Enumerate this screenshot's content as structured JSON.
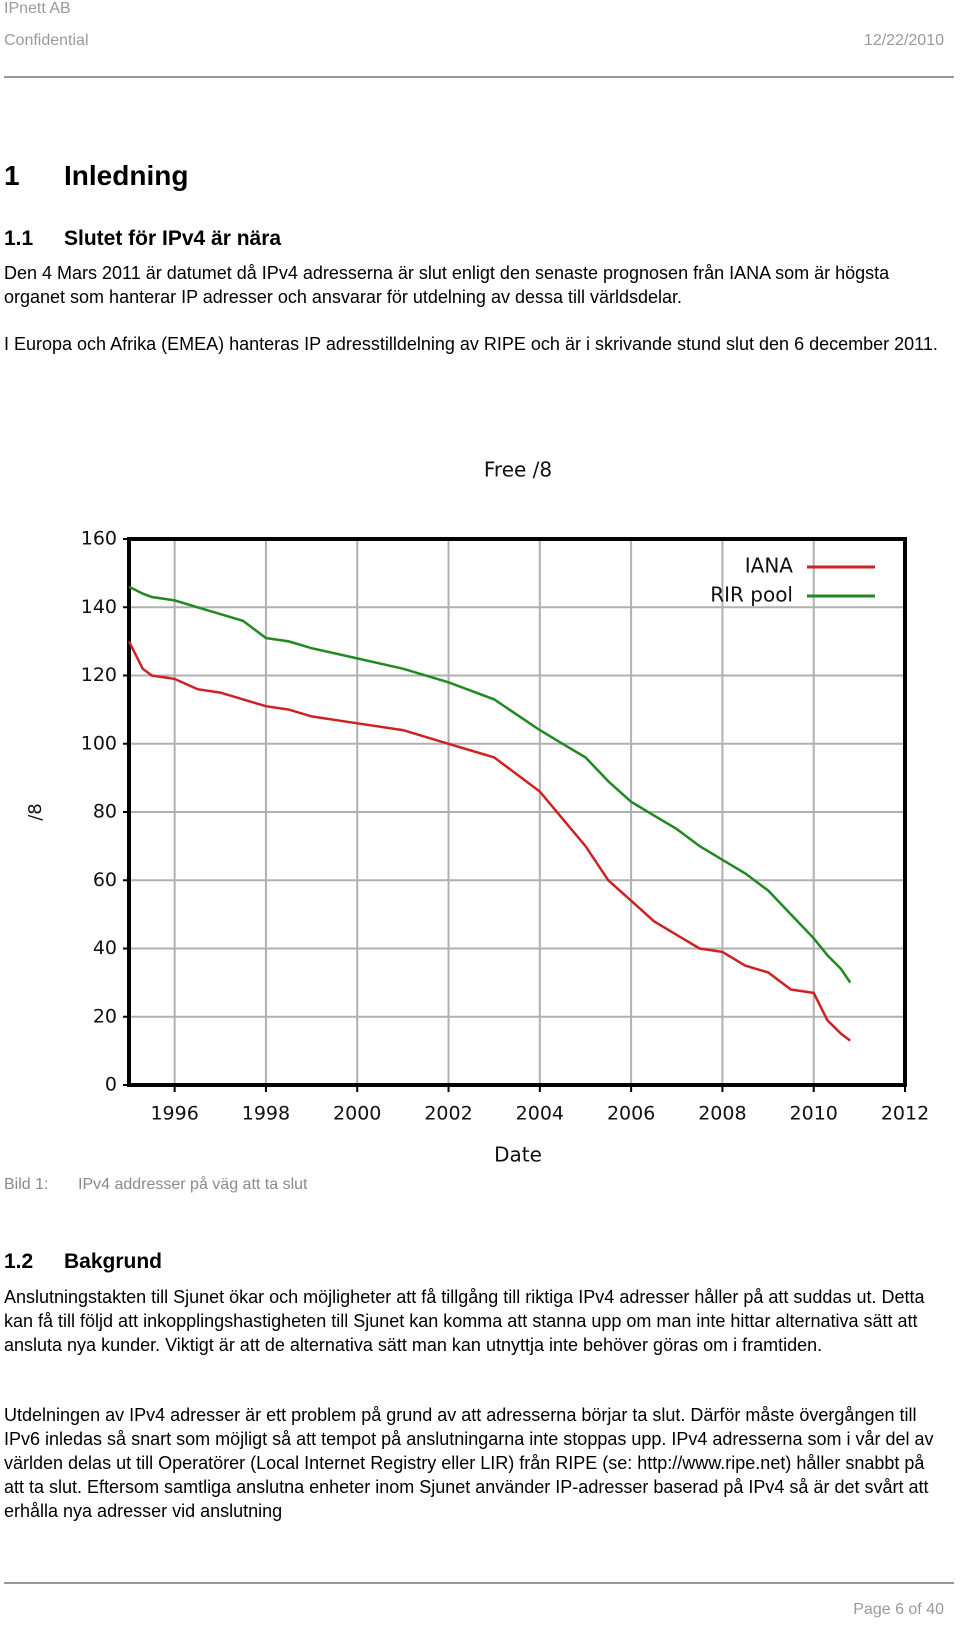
{
  "header": {
    "company": "IPnett AB",
    "classification": "Confidential",
    "date": "12/22/2010"
  },
  "sections": [
    {
      "number": "1",
      "title": "Inledning"
    },
    {
      "number": "1.1",
      "title": "Slutet för IPv4 är nära",
      "paragraphs": [
        "Den 4 Mars 2011 är datumet då IPv4 adresserna är slut enligt den senaste prognosen från IANA som är högsta organet som hanterar IP adresser och ansvarar för utdelning av dessa till världsdelar.",
        "I Europa och Afrika (EMEA) hanteras IP adresstilldelning av RIPE och är i skrivande stund slut den 6 december 2011."
      ]
    },
    {
      "number": "1.2",
      "title": "Bakgrund",
      "paragraphs": [
        "Anslutningstakten till Sjunet ökar och möjligheter att få tillgång till riktiga IPv4 adresser håller på att suddas ut. Detta kan få till följd att inkopplingshastigheten till Sjunet kan komma att stanna upp om man inte hittar alternativa sätt att ansluta nya kunder. Viktigt är att de alternativa sätt man kan utnyttja inte behöver göras om i framtiden.",
        "Utdelningen av IPv4 adresser är ett problem på grund av att adresserna börjar ta slut. Därför måste övergången till IPv6 inledas så snart som möjligt så att tempot på anslutningarna inte stoppas upp. IPv4 adresserna som i vår del av världen delas ut till Operatörer (Local Internet Registry eller LIR) från RIPE (se: http://www.ripe.net) håller snabbt på att ta slut. Eftersom samtliga anslutna enheter inom Sjunet använder IP-adresser baserad på IPv4 så är det svårt att erhålla nya adresser vid anslutning"
      ]
    }
  ],
  "caption": {
    "label": "Bild 1:",
    "text": "IPv4 addresser på väg att ta slut"
  },
  "footer": {
    "page": "Page 6 of 40"
  },
  "chart_data": {
    "type": "line",
    "title": "Free /8",
    "x_label": "Date",
    "y_label": "/8",
    "x": [
      1995,
      1995.3,
      1995.5,
      1996,
      1996.5,
      1997,
      1997.5,
      1998,
      1998.5,
      1999,
      2000,
      2001,
      2002,
      2003,
      2004,
      2004.5,
      2005,
      2005.5,
      2006,
      2006.5,
      2007,
      2007.5,
      2008,
      2008.5,
      2009,
      2009.5,
      2010,
      2010.3,
      2010.6,
      2010.8
    ],
    "series": [
      {
        "name": "IANA",
        "color": "#cc2222",
        "values": [
          130,
          122,
          120,
          119,
          116,
          115,
          113,
          111,
          110,
          108,
          106,
          104,
          100,
          96,
          86,
          78,
          70,
          60,
          54,
          48,
          44,
          40,
          39,
          35,
          33,
          28,
          27,
          19,
          15,
          13
        ]
      },
      {
        "name": "RIR pool",
        "color": "#228822",
        "values": [
          146,
          144,
          143,
          142,
          140,
          138,
          136,
          131,
          130,
          128,
          125,
          122,
          118,
          113,
          104,
          100,
          96,
          89,
          83,
          79,
          75,
          70,
          66,
          62,
          57,
          50,
          43,
          38,
          34,
          30
        ]
      }
    ],
    "xlim": [
      1995,
      2012
    ],
    "xticks": [
      1996,
      1998,
      2000,
      2002,
      2004,
      2006,
      2008,
      2010,
      2012
    ],
    "ylim": [
      0,
      160
    ],
    "yticks": [
      0,
      20,
      40,
      60,
      80,
      100,
      120,
      140,
      160
    ],
    "grid": true,
    "legend": "top-right"
  }
}
